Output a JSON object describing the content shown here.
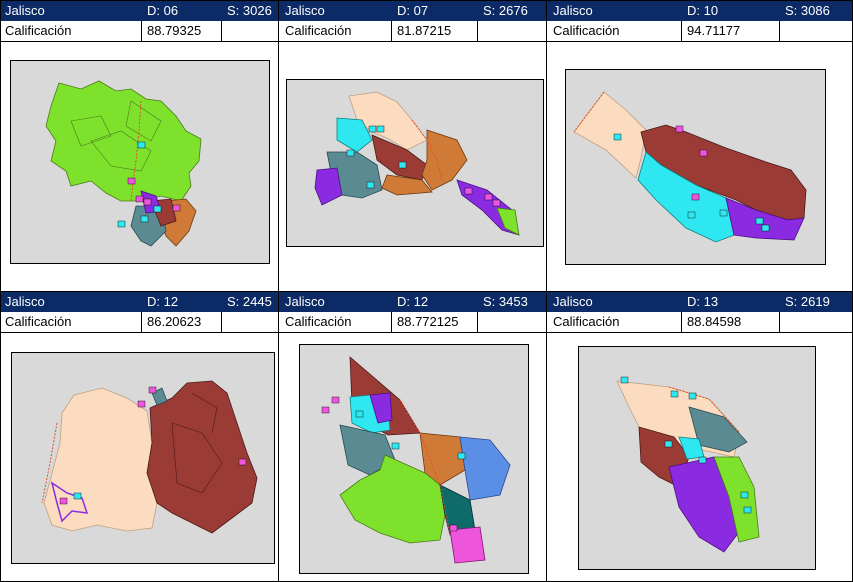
{
  "cells": [
    {
      "state": "Jalisco",
      "district": "D: 06",
      "section": "S: 3026",
      "score_label": "Calificación",
      "score": "88.79325"
    },
    {
      "state": "Jalisco",
      "district": "D: 07",
      "section": "S: 2676",
      "score_label": "Calificación",
      "score": "81.87215"
    },
    {
      "state": "Jalisco",
      "district": "D: 10",
      "section": "S: 3086",
      "score_label": "Calificación",
      "score": "94.71177"
    },
    {
      "state": "Jalisco",
      "district": "D: 12",
      "section": "S: 2445",
      "score_label": "Calificación",
      "score": "86.20623"
    },
    {
      "state": "Jalisco",
      "district": "D: 12",
      "section": "S: 3453",
      "score_label": "Calificación",
      "score": "88.772125"
    },
    {
      "state": "Jalisco",
      "district": "D: 13",
      "section": "S: 2619",
      "score_label": "Calificación",
      "score": "88.84598"
    }
  ],
  "colors": {
    "header": "#0b2a66",
    "map_bg": "#d9d9d9",
    "green": "#7ee22c",
    "peach": "#fbdcc0",
    "brown": "#9b3b36",
    "orange": "#d07a38",
    "cyan": "#2fe7f0",
    "slate": "#5a8a92",
    "purple": "#8a2be2",
    "blue": "#5b8fe6",
    "teal": "#0f6a6a",
    "pink": "#ee55dd",
    "border": "#e0502a"
  },
  "icons": {
    "pin_e": "E",
    "pin_c": "C"
  }
}
